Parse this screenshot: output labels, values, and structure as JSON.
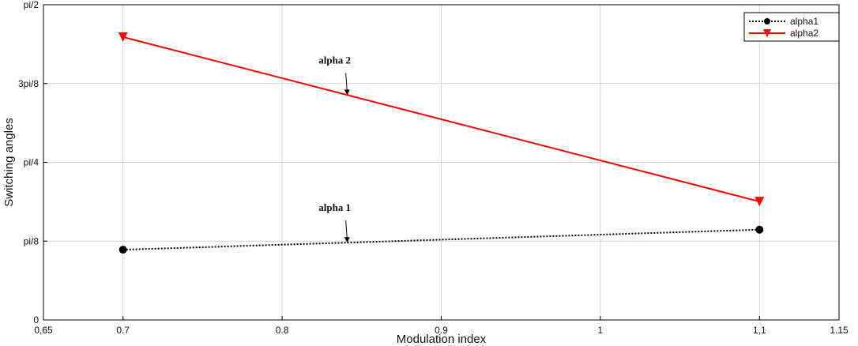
{
  "chart_data": {
    "type": "line",
    "xlabel": "Modulation index",
    "ylabel": "Switching angles",
    "xlim": [
      0.65,
      1.15
    ],
    "ylim": [
      0,
      1.5708
    ],
    "x_ticks": [
      {
        "value": 0.65,
        "label": "0,65"
      },
      {
        "value": 0.7,
        "label": "0.7"
      },
      {
        "value": 0.8,
        "label": "0.8"
      },
      {
        "value": 0.9,
        "label": "0.9"
      },
      {
        "value": 1.0,
        "label": "1"
      },
      {
        "value": 1.1,
        "label": "1,1"
      },
      {
        "value": 1.15,
        "label": "1.15"
      }
    ],
    "y_ticks": [
      {
        "value": 0,
        "label": "0"
      },
      {
        "value": 0.3927,
        "label": "pi/8"
      },
      {
        "value": 0.7854,
        "label": "pi/4"
      },
      {
        "value": 1.1781,
        "label": "3pi/8"
      },
      {
        "value": 1.5708,
        "label": "pi/2"
      }
    ],
    "grid": true,
    "legend_position": "top-right",
    "series": [
      {
        "name": "alpha1",
        "color": "#000000",
        "marker": "circle",
        "line": "dotted",
        "x": [
          0.7,
          1.1
        ],
        "y": [
          0.35,
          0.45
        ]
      },
      {
        "name": "alpha2",
        "color": "#ff0000",
        "marker": "triangle-down",
        "line": "solid",
        "x": [
          0.7,
          1.1
        ],
        "y": [
          1.41,
          0.59
        ]
      }
    ],
    "annotations": [
      {
        "text": "alpha 2",
        "x": 0.84,
        "y": 1.12
      },
      {
        "text": "alpha 1",
        "x": 0.84,
        "y": 0.385
      }
    ]
  }
}
